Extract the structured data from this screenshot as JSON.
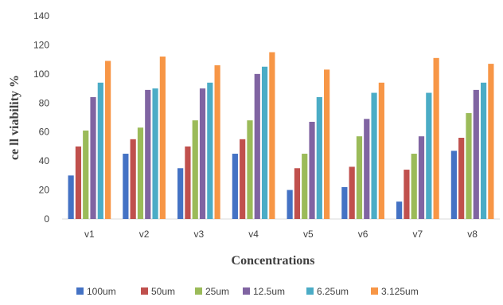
{
  "chart_data": {
    "type": "bar",
    "title": "",
    "xlabel": "Concentrations",
    "ylabel": "ce ll viability %",
    "ylim": [
      0,
      140
    ],
    "yticks": [
      0,
      20,
      40,
      60,
      80,
      100,
      120,
      140
    ],
    "categories": [
      "v1",
      "v2",
      "v3",
      "v4",
      "v5",
      "v6",
      "v7",
      "v8"
    ],
    "grid": false,
    "legend_position": "bottom",
    "series": [
      {
        "name": "100um",
        "color": "#4472C4",
        "values": [
          30,
          45,
          35,
          45,
          20,
          22,
          12,
          47
        ]
      },
      {
        "name": "50um",
        "color": "#C0504D",
        "values": [
          50,
          55,
          50,
          55,
          35,
          36,
          34,
          56
        ]
      },
      {
        "name": "25um",
        "color": "#9BBB59",
        "values": [
          61,
          63,
          68,
          68,
          45,
          57,
          45,
          73
        ]
      },
      {
        "name": "12.5um",
        "color": "#8064A2",
        "values": [
          84,
          89,
          90,
          100,
          67,
          69,
          57,
          89
        ]
      },
      {
        "name": "6.25um",
        "color": "#4BACC6",
        "values": [
          94,
          90,
          94,
          105,
          84,
          87,
          87,
          94
        ]
      },
      {
        "name": "3.125um",
        "color": "#F79646",
        "values": [
          109,
          112,
          106,
          115,
          103,
          94,
          111,
          107
        ]
      }
    ]
  }
}
